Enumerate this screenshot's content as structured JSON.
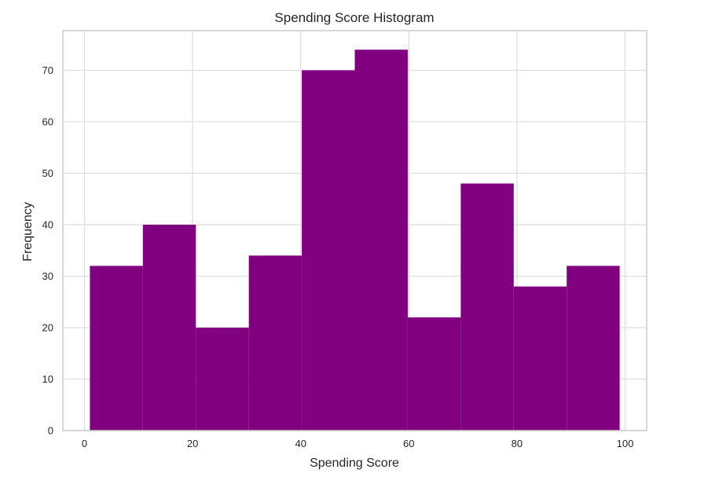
{
  "chart_data": {
    "type": "bar",
    "title": "Spending Score Histogram",
    "xlabel": "Spending Score",
    "ylabel": "Frequency",
    "bins": [
      {
        "start": 1.0,
        "end": 10.8,
        "count": 32
      },
      {
        "start": 10.8,
        "end": 20.6,
        "count": 40
      },
      {
        "start": 20.6,
        "end": 30.4,
        "count": 20
      },
      {
        "start": 30.4,
        "end": 40.2,
        "count": 34
      },
      {
        "start": 40.2,
        "end": 50.0,
        "count": 70
      },
      {
        "start": 50.0,
        "end": 59.8,
        "count": 74
      },
      {
        "start": 59.8,
        "end": 69.6,
        "count": 22
      },
      {
        "start": 69.6,
        "end": 79.4,
        "count": 48
      },
      {
        "start": 79.4,
        "end": 89.2,
        "count": 28
      },
      {
        "start": 89.2,
        "end": 99.0,
        "count": 32
      }
    ],
    "xlim": [
      -4,
      104
    ],
    "ylim": [
      0,
      77.7
    ],
    "xticks": [
      0,
      20,
      40,
      60,
      80,
      100
    ],
    "yticks": [
      0,
      10,
      20,
      30,
      40,
      50,
      60,
      70
    ],
    "grid": true,
    "bar_color": "#800080",
    "grid_color": "#dddddd",
    "spine_color": "#cccccc",
    "background": "#ffffff"
  }
}
